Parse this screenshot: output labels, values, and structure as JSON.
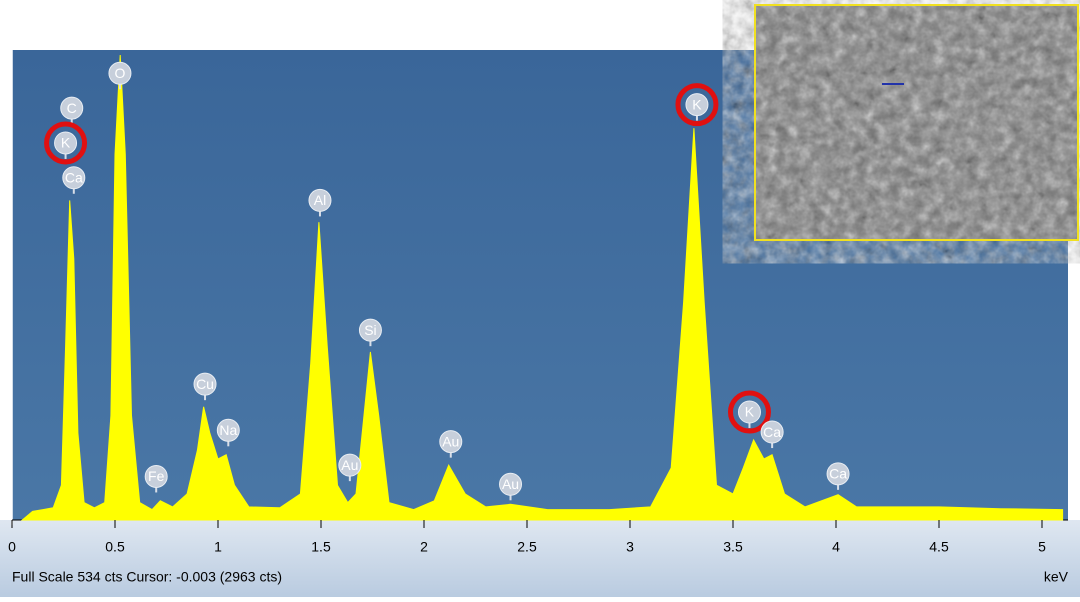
{
  "chart_data": {
    "type": "area",
    "color": "#ffff00",
    "background": "#3f6b9c",
    "x_label": "keV",
    "status_text": "Full Scale 534 cts Cursor: -0.003  (2963 cts)",
    "x": [
      0.05,
      0.1,
      0.15,
      0.2,
      0.24,
      0.26,
      0.28,
      0.3,
      0.32,
      0.35,
      0.4,
      0.45,
      0.48,
      0.5,
      0.525,
      0.55,
      0.58,
      0.62,
      0.68,
      0.72,
      0.78,
      0.85,
      0.9,
      0.93,
      0.96,
      1.0,
      1.04,
      1.08,
      1.15,
      1.3,
      1.4,
      1.45,
      1.49,
      1.53,
      1.58,
      1.63,
      1.67,
      1.7,
      1.74,
      1.78,
      1.83,
      1.95,
      2.05,
      2.12,
      2.2,
      2.3,
      2.42,
      2.6,
      2.9,
      3.1,
      3.2,
      3.26,
      3.31,
      3.36,
      3.42,
      3.5,
      3.55,
      3.6,
      3.65,
      3.69,
      3.75,
      3.85,
      4.01,
      4.1,
      4.5,
      4.8,
      5.1
    ],
    "values": [
      0,
      10,
      12,
      14,
      40,
      200,
      367,
      300,
      100,
      20,
      14,
      20,
      120,
      420,
      534,
      420,
      120,
      20,
      12,
      22,
      15,
      30,
      80,
      130,
      100,
      70,
      75,
      40,
      15,
      14,
      30,
      180,
      342,
      200,
      40,
      20,
      30,
      100,
      193,
      120,
      20,
      12,
      22,
      63,
      30,
      15,
      18,
      12,
      12,
      15,
      60,
      250,
      450,
      250,
      40,
      30,
      60,
      92,
      70,
      75,
      30,
      15,
      29,
      15,
      15,
      13,
      12
    ],
    "xlim": [
      0,
      5.1
    ],
    "ylim": [
      0,
      534
    ],
    "xticks": [
      0,
      0.5,
      1,
      1.5,
      2,
      2.5,
      3,
      3.5,
      4,
      4.5,
      5
    ],
    "peak_labels": [
      {
        "text": "C",
        "x": 0.29,
        "y": 473,
        "highlighted": false
      },
      {
        "text": "K",
        "x": 0.26,
        "y": 433,
        "highlighted": true
      },
      {
        "text": "Ca",
        "x": 0.3,
        "y": 393,
        "highlighted": false
      },
      {
        "text": "O",
        "x": 0.524,
        "y": 513,
        "highlighted": false
      },
      {
        "text": "Fe",
        "x": 0.7,
        "y": 50,
        "highlighted": false
      },
      {
        "text": "Cu",
        "x": 0.937,
        "y": 156,
        "highlighted": false
      },
      {
        "text": "Na",
        "x": 1.05,
        "y": 103,
        "highlighted": false
      },
      {
        "text": "Al",
        "x": 1.495,
        "y": 367,
        "highlighted": false
      },
      {
        "text": "Au",
        "x": 1.64,
        "y": 63,
        "highlighted": false
      },
      {
        "text": "Si",
        "x": 1.74,
        "y": 218,
        "highlighted": false
      },
      {
        "text": "Au",
        "x": 2.13,
        "y": 90,
        "highlighted": false
      },
      {
        "text": "Au",
        "x": 2.42,
        "y": 41,
        "highlighted": false
      },
      {
        "text": "K",
        "x": 3.325,
        "y": 477,
        "highlighted": true
      },
      {
        "text": "K",
        "x": 3.58,
        "y": 124,
        "highlighted": true
      },
      {
        "text": "Ca",
        "x": 3.69,
        "y": 101,
        "highlighted": false
      },
      {
        "text": "Ca",
        "x": 4.01,
        "y": 53,
        "highlighted": false
      }
    ]
  }
}
